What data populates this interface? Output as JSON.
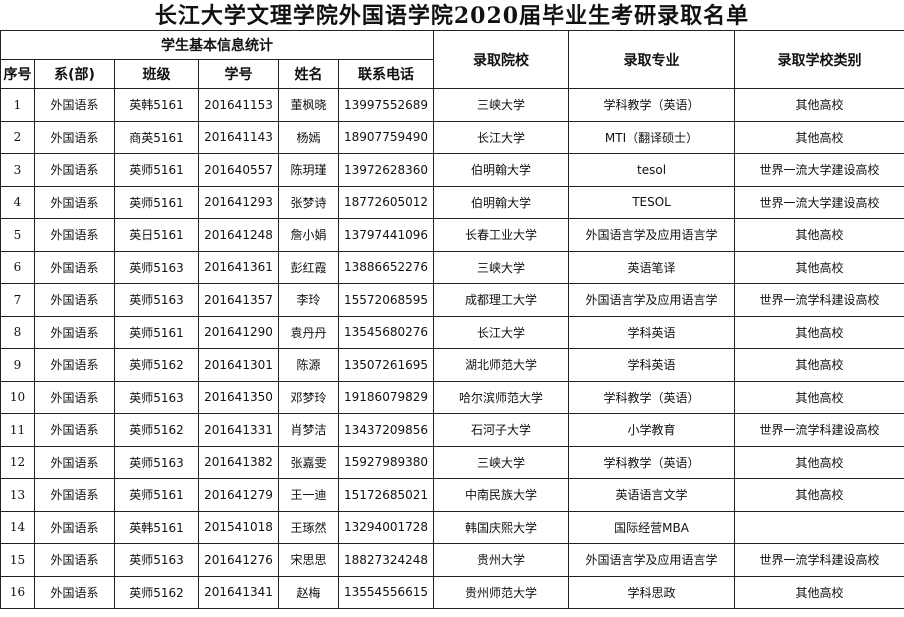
{
  "title": "长江大学文理学院外国语学院2020届毕业生考研录取名单",
  "header": {
    "group": "学生基本信息统计",
    "columns": [
      "序号",
      "系(部)",
      "班级",
      "学号",
      "姓名",
      "联系电话"
    ],
    "school": "录取院校",
    "major": "录取专业",
    "category": "录取学校类别"
  },
  "rows": [
    [
      "1",
      "外国语系",
      "英韩5161",
      "201641153",
      "董枫晓",
      "13997552689",
      "三峡大学",
      "学科教学（英语）",
      "其他高校"
    ],
    [
      "2",
      "外国语系",
      "商英5161",
      "201641143",
      "杨嫣",
      "18907759490",
      "长江大学",
      "MTI（翻译硕士）",
      "其他高校"
    ],
    [
      "3",
      "外国语系",
      "英师5161",
      "201640557",
      "陈玥瑾",
      "13972628360",
      "伯明翰大学",
      "tesol",
      "世界一流大学建设高校"
    ],
    [
      "4",
      "外国语系",
      "英师5161",
      "201641293",
      "张梦诗",
      "18772605012",
      "伯明翰大学",
      "TESOL",
      "世界一流大学建设高校"
    ],
    [
      "5",
      "外国语系",
      "英日5161",
      "201641248",
      "詹小娟",
      "13797441096",
      "长春工业大学",
      "外国语言学及应用语言学",
      "其他高校"
    ],
    [
      "6",
      "外国语系",
      "英师5163",
      "201641361",
      "彭红霞",
      "13886652276",
      "三峡大学",
      "英语笔译",
      "其他高校"
    ],
    [
      "7",
      "外国语系",
      "英师5163",
      "201641357",
      "李玲",
      "15572068595",
      "成都理工大学",
      "外国语言学及应用语言学",
      "世界一流学科建设高校"
    ],
    [
      "8",
      "外国语系",
      "英师5161",
      "201641290",
      "袁丹丹",
      "13545680276",
      "长江大学",
      "学科英语",
      "其他高校"
    ],
    [
      "9",
      "外国语系",
      "英师5162",
      "201641301",
      "陈源",
      "13507261695",
      "湖北师范大学",
      "学科英语",
      "其他高校"
    ],
    [
      "10",
      "外国语系",
      "英师5163",
      "201641350",
      "邓梦玲",
      "19186079829",
      "哈尔滨师范大学",
      "学科教学（英语）",
      "其他高校"
    ],
    [
      "11",
      "外国语系",
      "英师5162",
      "201641331",
      "肖梦洁",
      "13437209856",
      "石河子大学",
      "小学教育",
      "世界一流学科建设高校"
    ],
    [
      "12",
      "外国语系",
      "英师5163",
      "201641382",
      "张嘉雯",
      "15927989380",
      "三峡大学",
      "学科教学（英语）",
      "其他高校"
    ],
    [
      "13",
      "外国语系",
      "英师5161",
      "201641279",
      "王一迪",
      "15172685021",
      "中南民族大学",
      "英语语言文学",
      "其他高校"
    ],
    [
      "14",
      "外国语系",
      "英韩5161",
      "201541018",
      "王琢然",
      "13294001728",
      "韩国庆熙大学",
      "国际经营MBA",
      ""
    ],
    [
      "15",
      "外国语系",
      "英师5163",
      "201641276",
      "宋思思",
      "18827324248",
      "贵州大学",
      "外国语言学及应用语言学",
      "世界一流学科建设高校"
    ],
    [
      "16",
      "外国语系",
      "英师5162",
      "201641341",
      "赵梅",
      "13554556615",
      "贵州师范大学",
      "学科思政",
      "其他高校"
    ]
  ]
}
